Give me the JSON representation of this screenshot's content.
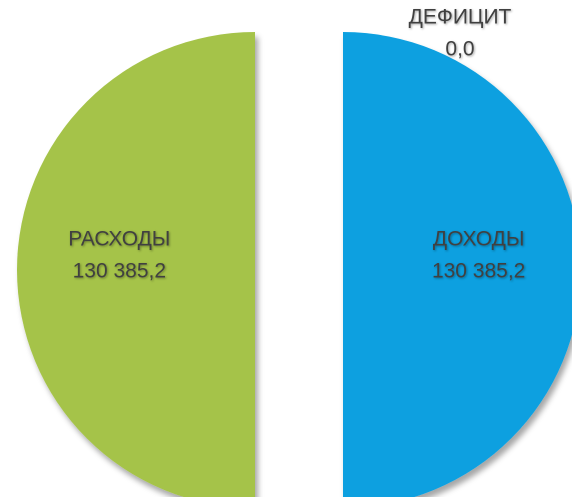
{
  "chart_data": {
    "type": "pie",
    "categories": [
      "ДОХОДЫ",
      "РАСХОДЫ",
      "ДЕФИЦИТ"
    ],
    "values": [
      130385.2,
      130385.2,
      0
    ],
    "value_labels": [
      "130 385,2",
      "130 385,2",
      "0,0"
    ],
    "colors": [
      "#0aa0e0",
      "#a5c34a",
      "#e46c0a"
    ]
  }
}
